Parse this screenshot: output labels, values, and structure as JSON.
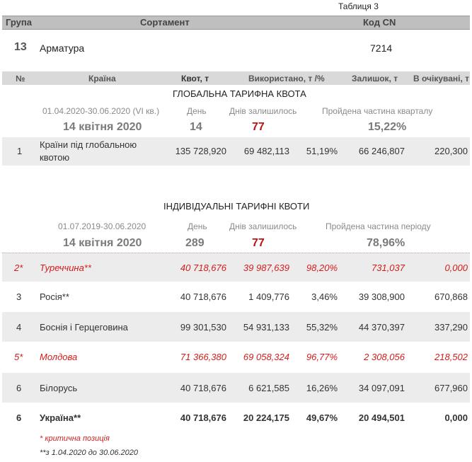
{
  "table_no": "Таблиця 3",
  "header": {
    "group": "Група",
    "assortment": "Сортамент",
    "cn_code": "Код CN"
  },
  "product": {
    "group": "13",
    "name": "Арматура",
    "code": "7214"
  },
  "columns": {
    "num": "№",
    "country": "Країна",
    "quota": "Квот, т",
    "used": "Використано, т /%",
    "remaining": "Залишок, т",
    "pending": "В очікувані, т"
  },
  "global": {
    "title": "ГЛОБАЛЬНА ТАРИФНА КВОТА",
    "period": "01.04.2020-30.06.2020 (VI кв.)",
    "day_label": "День",
    "days_left_label": "Днів залишилось",
    "passed_label": "Пройдена частина кварталу",
    "date": "14 квітня 2020",
    "day": "14",
    "days_left": "77",
    "passed": "15,22%",
    "row": {
      "num": "1",
      "country_l1": "Країни під глобальною",
      "country_l2": "квотою",
      "quota": "135 728,920",
      "used": "69 482,113",
      "pct": "51,19%",
      "remaining": "66 246,807",
      "pending": "220,300"
    }
  },
  "individual": {
    "title": "ІНДИВІДУАЛЬНІ ТАРИФНІ КВОТИ",
    "period": "01.07.2019-30.06.2020",
    "day_label": "День",
    "days_left_label": "Днів залишилось",
    "passed_label": "Пройдена частина періоду",
    "date": "14 квітня 2020",
    "day": "289",
    "days_left": "77",
    "passed": "78,96%",
    "rows": [
      {
        "num": "2*",
        "country": "Туреччина**",
        "quota": "40 718,676",
        "used": "39 987,639",
        "pct": "98,20%",
        "remaining": "731,037",
        "pending": "0,000"
      },
      {
        "num": "3",
        "country": "Росія**",
        "quota": "40 718,676",
        "used": "1 409,776",
        "pct": "3,46%",
        "remaining": "39 308,900",
        "pending": "670,868"
      },
      {
        "num": "4",
        "country": "Боснія і Герцеговина",
        "quota": "99 301,530",
        "used": "54 931,133",
        "pct": "55,32%",
        "remaining": "44 370,397",
        "pending": "337,290"
      },
      {
        "num": "5*",
        "country": "Молдова",
        "quota": "71 366,380",
        "used": "69 058,324",
        "pct": "96,77%",
        "remaining": "2 308,056",
        "pending": "218,502"
      },
      {
        "num": "6",
        "country": "Білорусь",
        "quota": "40 718,676",
        "used": "6 621,585",
        "pct": "16,26%",
        "remaining": "34 097,091",
        "pending": "677,960"
      },
      {
        "num": "6",
        "country": "Україна**",
        "quota": "40 718,676",
        "used": "20 224,175",
        "pct": "49,67%",
        "remaining": "20 494,501",
        "pending": "0,000"
      }
    ]
  },
  "footnotes": {
    "critical": "* критична позиція",
    "period": "**з 1.04.2020 до 30.06.2020"
  }
}
